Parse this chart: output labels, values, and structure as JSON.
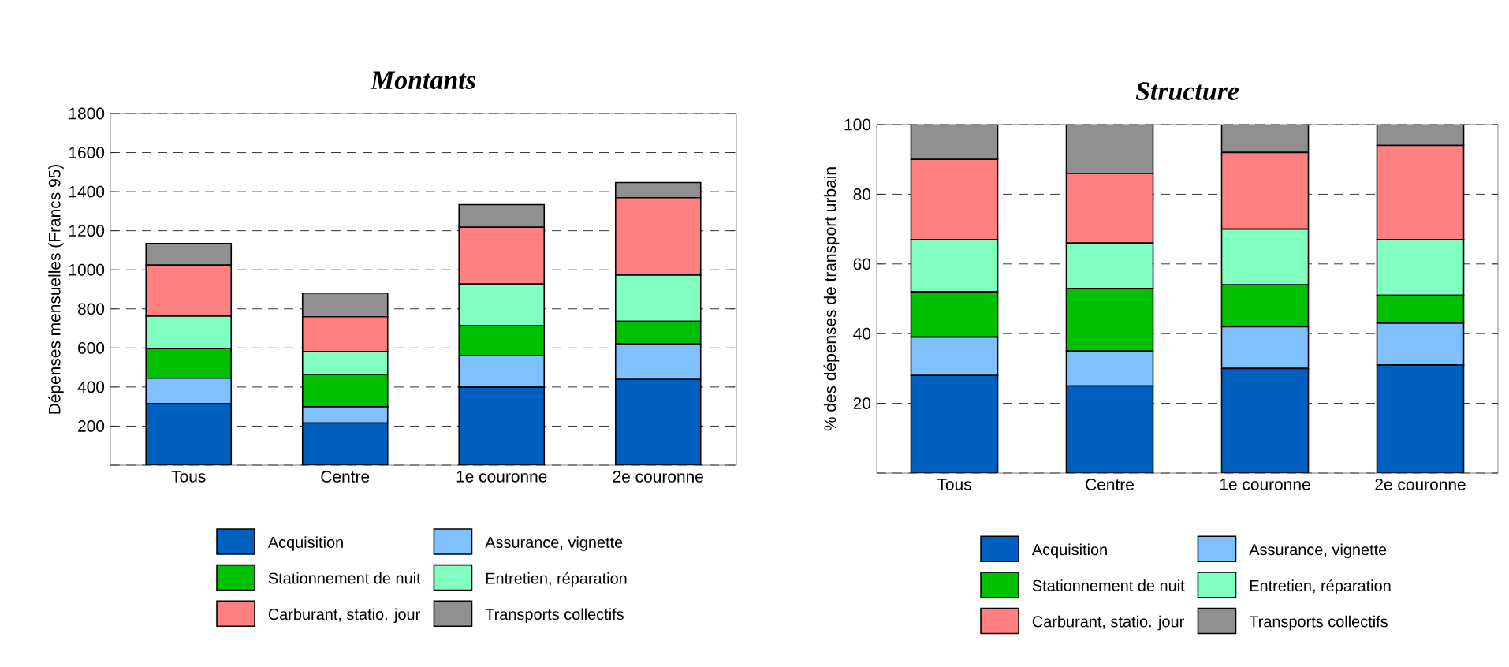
{
  "chart_data": [
    {
      "type": "bar",
      "stacked": true,
      "title": "Montants",
      "ylabel": "Dépenses mensuelles (Francs 95)",
      "categories": [
        "Tous",
        "Centre",
        "1e couronne",
        "2e couronne"
      ],
      "series": [
        {
          "name": "Acquisition",
          "color": "#0060c0",
          "values": [
            315,
            216,
            399,
            439
          ]
        },
        {
          "name": "Assurance, vignette",
          "color": "#80c0ff",
          "values": [
            130,
            83,
            162,
            181
          ]
        },
        {
          "name": "Stationnement de nuit",
          "color": "#00c000",
          "values": [
            151,
            165,
            153,
            116
          ]
        },
        {
          "name": "Entretien, réparation",
          "color": "#80ffc0",
          "values": [
            167,
            118,
            213,
            237
          ]
        },
        {
          "name": "Carburant, statio. jour",
          "color": "#ff8080",
          "values": [
            261,
            178,
            291,
            396
          ]
        },
        {
          "name": "Transports collectifs",
          "color": "#909090",
          "values": [
            111,
            121,
            116,
            78
          ]
        }
      ],
      "ylim": [
        0,
        1800
      ],
      "yticks": [
        {
          "value": 0,
          "label": null
        },
        200,
        400,
        600,
        800,
        1000,
        1200,
        1400,
        1600,
        1800
      ],
      "grid": "y",
      "legend": "bottom"
    },
    {
      "type": "bar",
      "stacked": true,
      "title": "Structure",
      "ylabel": "% des dépenses de transport urbain",
      "categories": [
        "Tous",
        "Centre",
        "1e couronne",
        "2e couronne"
      ],
      "series": [
        {
          "name": "Acquisition",
          "color": "#0060c0",
          "values": [
            28,
            25,
            30,
            31
          ]
        },
        {
          "name": "Assurance, vignette",
          "color": "#80c0ff",
          "values": [
            11,
            10,
            12,
            12
          ]
        },
        {
          "name": "Stationnement de nuit",
          "color": "#00c000",
          "values": [
            13,
            18,
            12,
            8
          ]
        },
        {
          "name": "Entretien, réparation",
          "color": "#80ffc0",
          "values": [
            15,
            13,
            16,
            16
          ]
        },
        {
          "name": "Carburant, statio. jour",
          "color": "#ff8080",
          "values": [
            23,
            20,
            22,
            27
          ]
        },
        {
          "name": "Transports collectifs",
          "color": "#909090",
          "values": [
            10,
            14,
            8,
            6
          ]
        }
      ],
      "ylim": [
        0,
        100
      ],
      "yticks": [
        {
          "value": 0,
          "label": null
        },
        20,
        40,
        60,
        80,
        100
      ],
      "grid": "y",
      "legend": "bottom"
    }
  ]
}
